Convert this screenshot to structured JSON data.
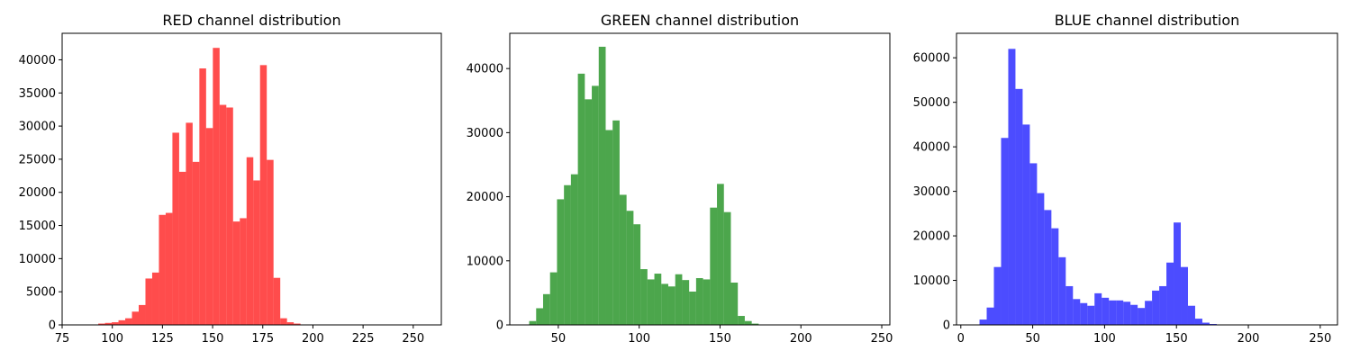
{
  "chart_data": [
    {
      "type": "bar",
      "title": "RED channel distribution",
      "color": "#ff0000",
      "opacity": 0.7,
      "xlim": [
        75,
        264
      ],
      "ylim": [
        0,
        44000
      ],
      "xticks": [
        75,
        100,
        125,
        150,
        175,
        200,
        225,
        250
      ],
      "yticks": [
        0,
        5000,
        10000,
        15000,
        20000,
        25000,
        30000,
        35000,
        40000
      ],
      "bin_start": 93,
      "bin_width": 3.36,
      "values": [
        200,
        300,
        400,
        700,
        1000,
        2000,
        3000,
        7000,
        7900,
        16600,
        16900,
        29000,
        23100,
        30500,
        24600,
        38700,
        29700,
        41800,
        33200,
        32800,
        15600,
        16100,
        25300,
        21800,
        39200,
        24900,
        7100,
        1000,
        400,
        200
      ]
    },
    {
      "type": "bar",
      "title": "GREEN channel distribution",
      "color": "#008000",
      "opacity": 0.7,
      "xlim": [
        20,
        255
      ],
      "ylim": [
        0,
        45500
      ],
      "xticks": [
        50,
        100,
        150,
        200,
        250
      ],
      "yticks": [
        0,
        10000,
        20000,
        30000,
        40000
      ],
      "bin_start": 32,
      "bin_width": 4.3,
      "values": [
        600,
        2600,
        4800,
        8200,
        19600,
        21800,
        23500,
        39200,
        35200,
        37300,
        43400,
        30400,
        31900,
        20300,
        17800,
        15700,
        8700,
        7100,
        8000,
        6400,
        6000,
        7900,
        7000,
        5200,
        7300,
        7100,
        18300,
        22000,
        17600,
        6600,
        1400,
        600,
        200
      ]
    },
    {
      "type": "bar",
      "title": "BLUE channel distribution",
      "color": "#0000ff",
      "opacity": 0.7,
      "xlim": [
        -3,
        262
      ],
      "ylim": [
        0,
        65500
      ],
      "xticks": [
        0,
        50,
        100,
        150,
        200,
        250
      ],
      "yticks": [
        0,
        10000,
        20000,
        30000,
        40000,
        50000,
        60000
      ],
      "bin_start": 13,
      "bin_width": 5,
      "values": [
        1200,
        3900,
        13000,
        42000,
        62000,
        53000,
        45000,
        36300,
        29600,
        25800,
        21700,
        15200,
        8700,
        5800,
        4900,
        4300,
        7100,
        6100,
        5500,
        5500,
        5200,
        4500,
        3800,
        5400,
        7700,
        8700,
        14000,
        23000,
        13000,
        4300,
        1400,
        500,
        200
      ]
    }
  ]
}
